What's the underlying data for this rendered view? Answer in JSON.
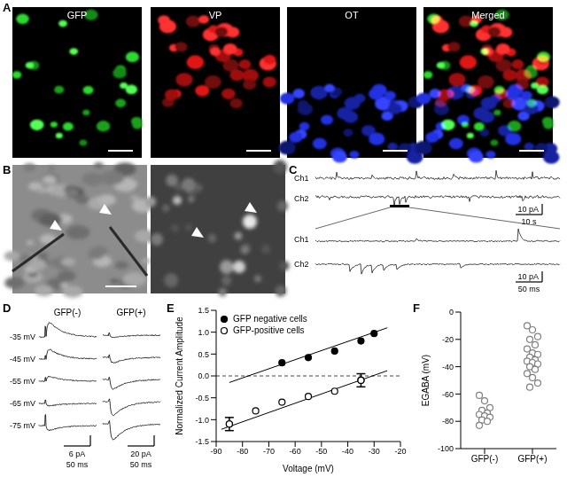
{
  "panels": {
    "A": {
      "label": "A",
      "images": [
        "GFP",
        "VP",
        "OT",
        "Merged"
      ]
    },
    "B": {
      "label": "B"
    },
    "C": {
      "label": "C",
      "channels": [
        "Ch1",
        "Ch2"
      ],
      "scale_top": {
        "y": "10 pA",
        "x": "10 s"
      },
      "scale_bottom": {
        "y": "10 pA",
        "x": "50 ms"
      }
    },
    "D": {
      "label": "D",
      "columns": [
        "GFP(-)",
        "GFP(+)"
      ],
      "voltages": [
        "-35 mV",
        "-45 mV",
        "-55 mV",
        "-65 mV",
        "-75 mV"
      ],
      "scales": [
        {
          "y": "6 pA",
          "x": "50 ms"
        },
        {
          "y": "20 pA",
          "x": "50 ms"
        }
      ]
    }
  },
  "chart_data": [
    {
      "type": "scatter",
      "panel_label": "E",
      "x_label": "Voltage (mV)",
      "y_label": "Normalized Current Amplitude",
      "xlim": [
        -90,
        -20
      ],
      "xticks": [
        -90,
        -80,
        -70,
        -60,
        -50,
        -40,
        -30,
        -20
      ],
      "ylim": [
        -1.5,
        1.5
      ],
      "yticks": [
        -1.5,
        {
          "value": -1,
          "label": "-1.0"
        },
        -0.5,
        {
          "value": 0,
          "label": "0.0"
        },
        0.5,
        {
          "value": 1,
          "label": "1.0"
        },
        1.5
      ],
      "legend": "upper left",
      "hlines": [
        {
          "value": 0,
          "line_style": "dashed"
        }
      ],
      "series": [
        {
          "name": "GFP negative cells",
          "color": "#000000",
          "marker": "filled",
          "x": [
            -65,
            -55,
            -45,
            -35,
            -30
          ],
          "values": [
            0.3,
            0.42,
            0.57,
            0.8,
            0.97
          ]
        },
        {
          "name": "GFP-positive cells",
          "color": "#000000",
          "marker": "open",
          "x": [
            -85,
            -75,
            -65,
            -55,
            -45,
            -35
          ],
          "values": [
            -1.1,
            -0.8,
            -0.6,
            -0.47,
            -0.35,
            -0.1
          ],
          "errors": [
            0.15,
            null,
            null,
            null,
            null,
            0.15
          ]
        },
        {
          "type": "line",
          "color": "#000000",
          "x": [
            -85,
            -25
          ],
          "values": [
            -0.15,
            1.1
          ]
        },
        {
          "type": "line",
          "color": "#000000",
          "x": [
            -88,
            -25
          ],
          "values": [
            -1.22,
            0.12
          ]
        }
      ]
    },
    {
      "type": "strip",
      "panel_label": "F",
      "categories": [
        "GFP(-)",
        "GFP(+)"
      ],
      "y_label": "EGABA (mV)",
      "ylim": [
        -100,
        0
      ],
      "yticks": [
        -100,
        -80,
        -60,
        -40,
        -20,
        0
      ],
      "marker": "open",
      "color": "#808080",
      "values": [
        [
          -61,
          -65,
          -70,
          -72,
          -74,
          -75,
          -76,
          -77,
          -79,
          -80,
          -83
        ],
        [
          -10,
          -13,
          -18,
          -20,
          -24,
          -27,
          -30,
          -31,
          -33,
          -35,
          -36,
          -37,
          -38,
          -40,
          -42,
          -45,
          -48,
          -52,
          -55
        ]
      ]
    }
  ]
}
